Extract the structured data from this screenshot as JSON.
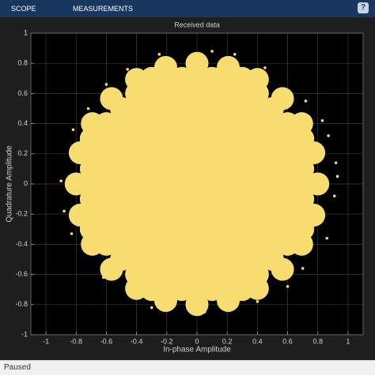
{
  "toolbar": {
    "tabs": [
      "SCOPE",
      "MEASUREMENTS"
    ]
  },
  "status": "Paused",
  "chart_data": {
    "type": "scatter",
    "title": "Received data",
    "xlabel": "In-phase Amplitude",
    "ylabel": "Quadrature Amplitude",
    "xlim": [
      -1.1,
      1.1
    ],
    "ylim": [
      -1,
      1
    ],
    "xticks": [
      -1,
      -0.8,
      -0.6,
      -0.4,
      -0.2,
      0,
      0.2,
      0.4,
      0.6,
      0.8,
      1
    ],
    "yticks": [
      -1,
      -0.8,
      -0.6,
      -0.4,
      -0.2,
      0,
      0.2,
      0.4,
      0.6,
      0.8,
      1
    ],
    "grid": true,
    "series": [
      {
        "color": "#f7dc6f",
        "x": [
          -0.7,
          -0.7,
          -0.7,
          -0.7,
          -0.7,
          -0.7,
          -0.7,
          -0.6,
          -0.6,
          -0.6,
          -0.6,
          -0.6,
          -0.6,
          -0.6,
          -0.6,
          -0.6,
          -0.5,
          -0.5,
          -0.5,
          -0.5,
          -0.5,
          -0.5,
          -0.5,
          -0.5,
          -0.5,
          -0.5,
          -0.5,
          -0.4,
          -0.4,
          -0.4,
          -0.4,
          -0.4,
          -0.4,
          -0.4,
          -0.4,
          -0.4,
          -0.4,
          -0.4,
          -0.4,
          -0.4,
          -0.3,
          -0.3,
          -0.3,
          -0.3,
          -0.3,
          -0.3,
          -0.3,
          -0.3,
          -0.3,
          -0.3,
          -0.3,
          -0.3,
          -0.3,
          -0.3,
          -0.3,
          -0.2,
          -0.2,
          -0.2,
          -0.2,
          -0.2,
          -0.2,
          -0.2,
          -0.2,
          -0.2,
          -0.2,
          -0.2,
          -0.2,
          -0.2,
          -0.2,
          -0.2,
          -0.1,
          -0.1,
          -0.1,
          -0.1,
          -0.1,
          -0.1,
          -0.1,
          -0.1,
          -0.1,
          -0.1,
          -0.1,
          -0.1,
          -0.1,
          -0.1,
          -0.1,
          0,
          0,
          0,
          0,
          0,
          0,
          0,
          0,
          0,
          0,
          0,
          0,
          0,
          0,
          0,
          0.1,
          0.1,
          0.1,
          0.1,
          0.1,
          0.1,
          0.1,
          0.1,
          0.1,
          0.1,
          0.1,
          0.1,
          0.1,
          0.1,
          0.1,
          0.2,
          0.2,
          0.2,
          0.2,
          0.2,
          0.2,
          0.2,
          0.2,
          0.2,
          0.2,
          0.2,
          0.2,
          0.2,
          0.2,
          0.2,
          0.3,
          0.3,
          0.3,
          0.3,
          0.3,
          0.3,
          0.3,
          0.3,
          0.3,
          0.3,
          0.3,
          0.3,
          0.3,
          0.3,
          0.3,
          0.4,
          0.4,
          0.4,
          0.4,
          0.4,
          0.4,
          0.4,
          0.4,
          0.4,
          0.4,
          0.4,
          0.4,
          0.4,
          0.5,
          0.5,
          0.5,
          0.5,
          0.5,
          0.5,
          0.5,
          0.5,
          0.5,
          0.5,
          0.5,
          0.6,
          0.6,
          0.6,
          0.6,
          0.6,
          0.6,
          0.6,
          0.6,
          0.6,
          0.7,
          0.7,
          0.7,
          0.7,
          0.7,
          0.7,
          0.7,
          0.8,
          0.773,
          0.693,
          0.566,
          0.4,
          0.207,
          0,
          -0.207,
          -0.4,
          -0.566,
          -0.693,
          -0.773,
          -0.8,
          -0.773,
          -0.693,
          -0.566,
          -0.4,
          -0.207,
          0,
          0.207,
          0.4,
          0.566,
          0.693,
          0.773
        ],
        "values": [
          -0.3,
          -0.2,
          -0.1,
          0,
          0.1,
          0.2,
          0.3,
          -0.4,
          -0.3,
          -0.2,
          -0.1,
          0,
          0.1,
          0.2,
          0.3,
          0.4,
          -0.5,
          -0.4,
          -0.3,
          -0.2,
          -0.1,
          0,
          0.1,
          0.2,
          0.3,
          0.4,
          0.5,
          -0.6,
          -0.5,
          -0.4,
          -0.3,
          -0.2,
          -0.1,
          0,
          0.1,
          0.2,
          0.3,
          0.4,
          0.5,
          0.6,
          -0.7,
          -0.6,
          -0.5,
          -0.4,
          -0.3,
          -0.2,
          -0.1,
          0,
          0.1,
          0.2,
          0.3,
          0.4,
          0.5,
          0.6,
          0.7,
          -0.7,
          -0.6,
          -0.5,
          -0.4,
          -0.3,
          -0.2,
          -0.1,
          0,
          0.1,
          0.2,
          0.3,
          0.4,
          0.5,
          0.6,
          0.7,
          -0.7,
          -0.6,
          -0.5,
          -0.4,
          -0.3,
          -0.2,
          -0.1,
          0,
          0.1,
          0.2,
          0.3,
          0.4,
          0.5,
          0.6,
          0.7,
          -0.7,
          -0.6,
          -0.5,
          -0.4,
          -0.3,
          -0.2,
          -0.1,
          0,
          0.1,
          0.2,
          0.3,
          0.4,
          0.5,
          0.6,
          0.7,
          -0.7,
          -0.6,
          -0.5,
          -0.4,
          -0.3,
          -0.2,
          -0.1,
          0,
          0.1,
          0.2,
          0.3,
          0.4,
          0.5,
          0.6,
          0.7,
          -0.7,
          -0.6,
          -0.5,
          -0.4,
          -0.3,
          -0.2,
          -0.1,
          0,
          0.1,
          0.2,
          0.3,
          0.4,
          0.5,
          0.6,
          0.7,
          -0.7,
          -0.6,
          -0.5,
          -0.4,
          -0.3,
          -0.2,
          -0.1,
          0,
          0.1,
          0.2,
          0.3,
          0.4,
          0.5,
          0.6,
          0.7,
          -0.6,
          -0.5,
          -0.4,
          -0.3,
          -0.2,
          -0.1,
          0,
          0.1,
          0.2,
          0.3,
          0.4,
          0.5,
          0.6,
          -0.5,
          -0.4,
          -0.3,
          -0.2,
          -0.1,
          0,
          0.1,
          0.2,
          0.3,
          0.4,
          0.5,
          -0.4,
          -0.3,
          -0.2,
          -0.1,
          0,
          0.1,
          0.2,
          0.3,
          0.4,
          -0.3,
          -0.2,
          -0.1,
          0,
          0.1,
          0.2,
          0.3,
          0,
          0.207,
          0.4,
          0.566,
          0.693,
          0.773,
          0.8,
          0.773,
          0.693,
          0.566,
          0.4,
          0.207,
          0,
          -0.207,
          -0.4,
          -0.566,
          -0.693,
          -0.773,
          -0.8,
          -0.773,
          -0.693,
          -0.566,
          -0.4,
          -0.207
        ]
      },
      {
        "color": "#f7dc6f",
        "x": [
          0.92,
          0.91,
          0.87,
          0.86,
          0.72,
          0.7,
          0.45,
          0.4,
          0.1,
          0.05,
          -0.25,
          -0.3,
          -0.6,
          -0.62,
          -0.82,
          -0.83,
          -0.9,
          -0.88,
          0.6,
          0.25,
          -0.46,
          0.83,
          -0.72,
          0.93
        ],
        "values": [
          0.14,
          -0.08,
          0.32,
          -0.36,
          0.55,
          -0.56,
          0.77,
          -0.78,
          0.88,
          -0.85,
          0.86,
          -0.82,
          0.66,
          -0.62,
          0.36,
          -0.33,
          0.02,
          -0.18,
          -0.68,
          0.86,
          0.76,
          0.42,
          0.5,
          0.05
        ]
      }
    ]
  }
}
